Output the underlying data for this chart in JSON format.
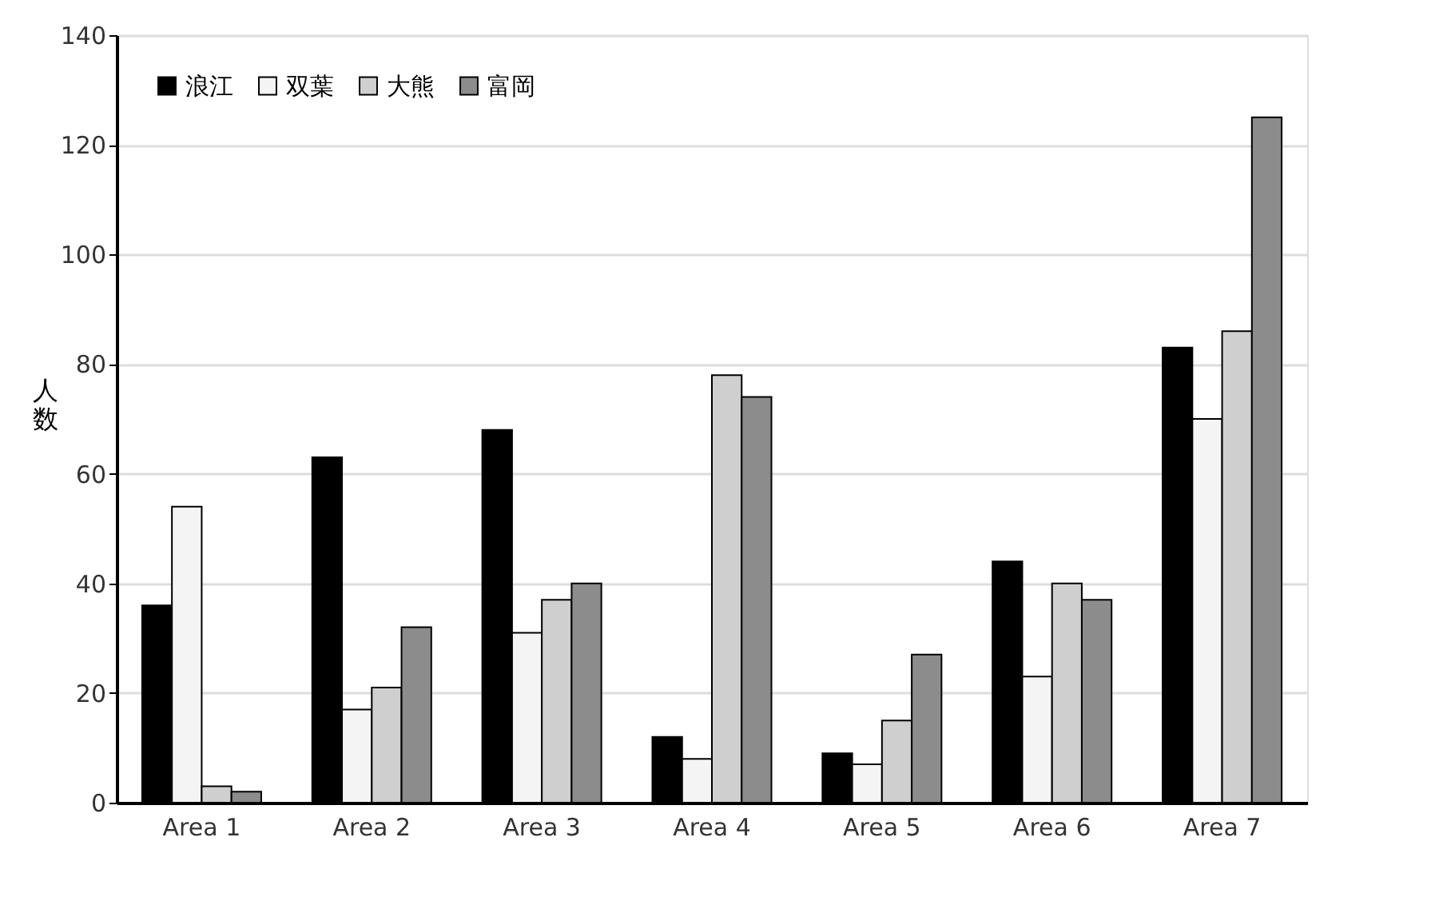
{
  "chart_data": {
    "type": "bar",
    "ylabel": "人数",
    "categories": [
      "Area 1",
      "Area 2",
      "Area 3",
      "Area 4",
      "Area 5",
      "Area 6",
      "Area 7"
    ],
    "series": [
      {
        "name": "浪江",
        "color": "#000000",
        "values": [
          36,
          63,
          68,
          12,
          9,
          44,
          83
        ]
      },
      {
        "name": "双葉",
        "color": "#f4f4f4",
        "values": [
          54,
          17,
          31,
          8,
          7,
          23,
          70
        ]
      },
      {
        "name": "大熊",
        "color": "#cfcfcf",
        "values": [
          3,
          21,
          37,
          78,
          15,
          40,
          86
        ]
      },
      {
        "name": "富岡",
        "color": "#8c8c8c",
        "values": [
          2,
          32,
          40,
          74,
          27,
          37,
          125
        ]
      }
    ],
    "ylim": [
      0,
      140
    ],
    "yticks": [
      0,
      20,
      40,
      60,
      80,
      100,
      120,
      140
    ],
    "grid": "y",
    "legend": "top left"
  }
}
